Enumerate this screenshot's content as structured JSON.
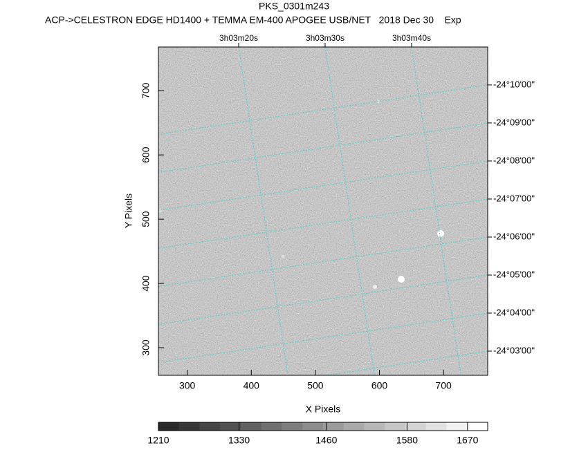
{
  "chart_data": {
    "type": "image",
    "title": "PKS_0301m243",
    "subtitle": "ACP->CELESTRON EDGE HD1400 + TEMMA EM-400 APOGEE USB/NET   2018 Dec 30    Exp",
    "x_label": "X Pixels",
    "y_label": "Y Pixels",
    "xlim": [
      255,
      769
    ],
    "xticks": [
      300,
      400,
      500,
      600,
      700
    ],
    "ylim": [
      257,
      768
    ],
    "yticks": [
      300,
      400,
      500,
      600,
      700
    ],
    "ra_lim": [
      3.052978,
      3.063556
    ],
    "ra_ticks": [
      {
        "value": 3.055556,
        "label": "3h03m20s"
      },
      {
        "value": 3.058333,
        "label": "3h03m30s"
      },
      {
        "value": 3.061111,
        "label": "3h03m40s"
      }
    ],
    "dec_lim": [
      -24.0394,
      -24.1833
    ],
    "dec_ticks": [
      {
        "value": -24.166667,
        "label": "-24°10'00\""
      },
      {
        "value": -24.15,
        "label": "-24°09'00\""
      },
      {
        "value": -24.133333,
        "label": "-24°08'00\""
      },
      {
        "value": -24.116667,
        "label": "-24°07'00\""
      },
      {
        "value": -24.1,
        "label": "-24°06'00\""
      },
      {
        "value": -24.083333,
        "label": "-24°05'00\""
      },
      {
        "value": -24.066667,
        "label": "-24°04'00\""
      },
      {
        "value": -24.05,
        "label": "-24°03'00\""
      }
    ],
    "grid_color": "#40d0d0",
    "clim": [
      1210,
      1700
    ],
    "cticks": [
      1210,
      1330,
      1460,
      1580,
      1670
    ]
  }
}
